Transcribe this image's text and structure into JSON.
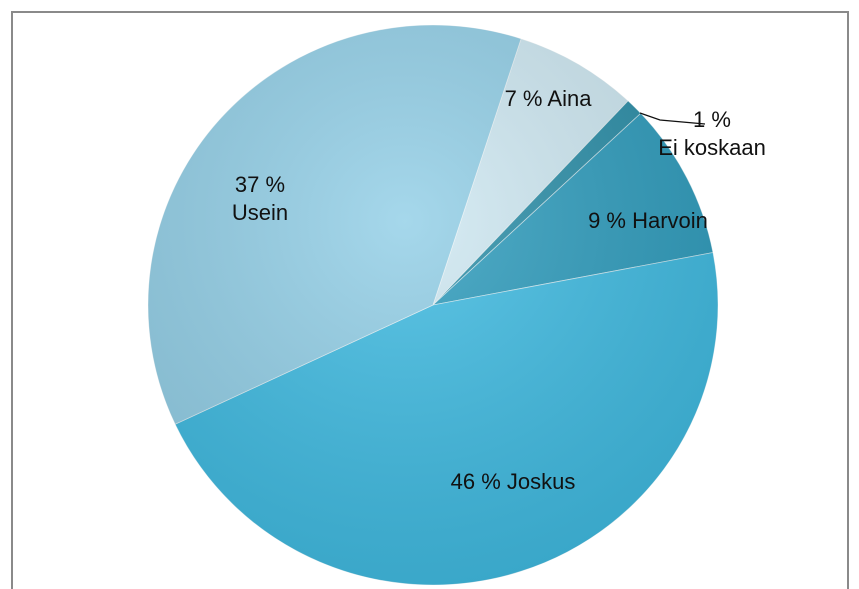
{
  "chart_data": {
    "type": "pie",
    "categories": [
      "Aina",
      "Ei koskaan",
      "Harvoin",
      "Joskus",
      "Usein"
    ],
    "values": [
      7,
      1,
      9,
      46,
      37
    ],
    "value_labels": [
      "7 %",
      "1 %",
      "9 %",
      "46 %",
      "37 %"
    ],
    "colors": [
      "#cfe9f3",
      "#2a8ea8",
      "#2d9cbd",
      "#3ebbe2",
      "#92cfe7"
    ]
  }
}
